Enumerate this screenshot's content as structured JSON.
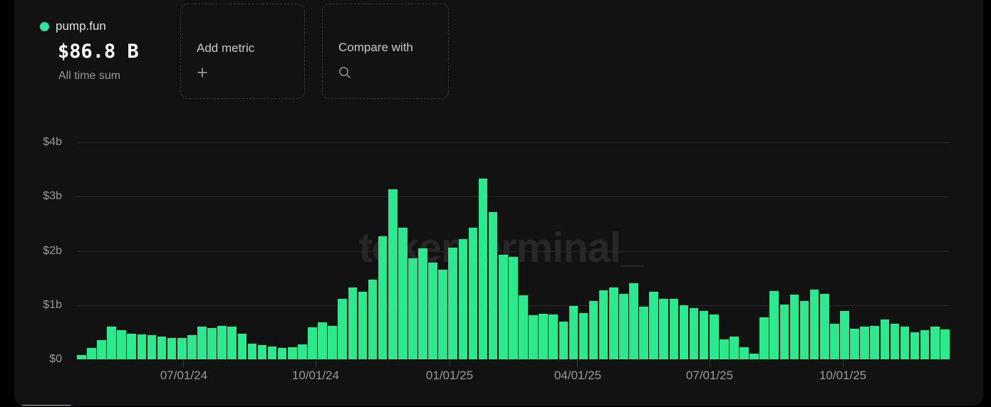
{
  "page": {
    "background": "#000000",
    "card_background": "#121212"
  },
  "header": {
    "series": {
      "name": "pump.fun",
      "dot_color": "#2ee3a0",
      "value": "$86.8 B",
      "caption": "All time sum"
    },
    "actions": [
      {
        "id": "add-metric",
        "label": "Add metric",
        "icon": "plus-icon"
      },
      {
        "id": "compare-with",
        "label": "Compare with",
        "icon": "search-icon"
      }
    ]
  },
  "watermark": "tokenterminal_",
  "chart_data": {
    "type": "bar",
    "series_name": "pump.fun",
    "unit": "USD billions per week",
    "bar_color": "#2be98f",
    "grid": true,
    "ylim": [
      0,
      4
    ],
    "y_ticks": [
      {
        "label": "$4b",
        "value": 4
      },
      {
        "label": "$3b",
        "value": 3
      },
      {
        "label": "$2b",
        "value": 2
      },
      {
        "label": "$1b",
        "value": 1
      },
      {
        "label": "$0",
        "value": 0
      }
    ],
    "x_ticks": [
      {
        "label": "07/01/24",
        "pos": 0.1225
      },
      {
        "label": "10/01/24",
        "pos": 0.2737
      },
      {
        "label": "01/01/25",
        "pos": 0.4273
      },
      {
        "label": "04/01/25",
        "pos": 0.5743
      },
      {
        "label": "07/01/25",
        "pos": 0.7255
      },
      {
        "label": "10/01/25",
        "pos": 0.8783
      }
    ],
    "values_billions": [
      0.08,
      0.21,
      0.35,
      0.61,
      0.54,
      0.47,
      0.46,
      0.45,
      0.42,
      0.4,
      0.39,
      0.45,
      0.61,
      0.58,
      0.62,
      0.6,
      0.47,
      0.29,
      0.26,
      0.23,
      0.21,
      0.22,
      0.27,
      0.59,
      0.68,
      0.62,
      1.11,
      1.32,
      1.25,
      1.47,
      2.27,
      3.13,
      2.42,
      1.86,
      2.04,
      1.79,
      1.65,
      2.06,
      2.22,
      2.42,
      3.33,
      2.71,
      1.93,
      1.89,
      1.18,
      0.81,
      0.84,
      0.82,
      0.69,
      0.98,
      0.85,
      1.07,
      1.27,
      1.32,
      1.21,
      1.41,
      0.97,
      1.25,
      1.11,
      1.11,
      1.0,
      0.94,
      0.89,
      0.82,
      0.37,
      0.42,
      0.22,
      0.11,
      0.77,
      1.26,
      1.01,
      1.19,
      1.07,
      1.29,
      1.21,
      0.65,
      0.89,
      0.56,
      0.6,
      0.62,
      0.74,
      0.65,
      0.6,
      0.5,
      0.54,
      0.61,
      0.55
    ]
  },
  "scrollbar": {
    "color": "#a8c6e6"
  }
}
